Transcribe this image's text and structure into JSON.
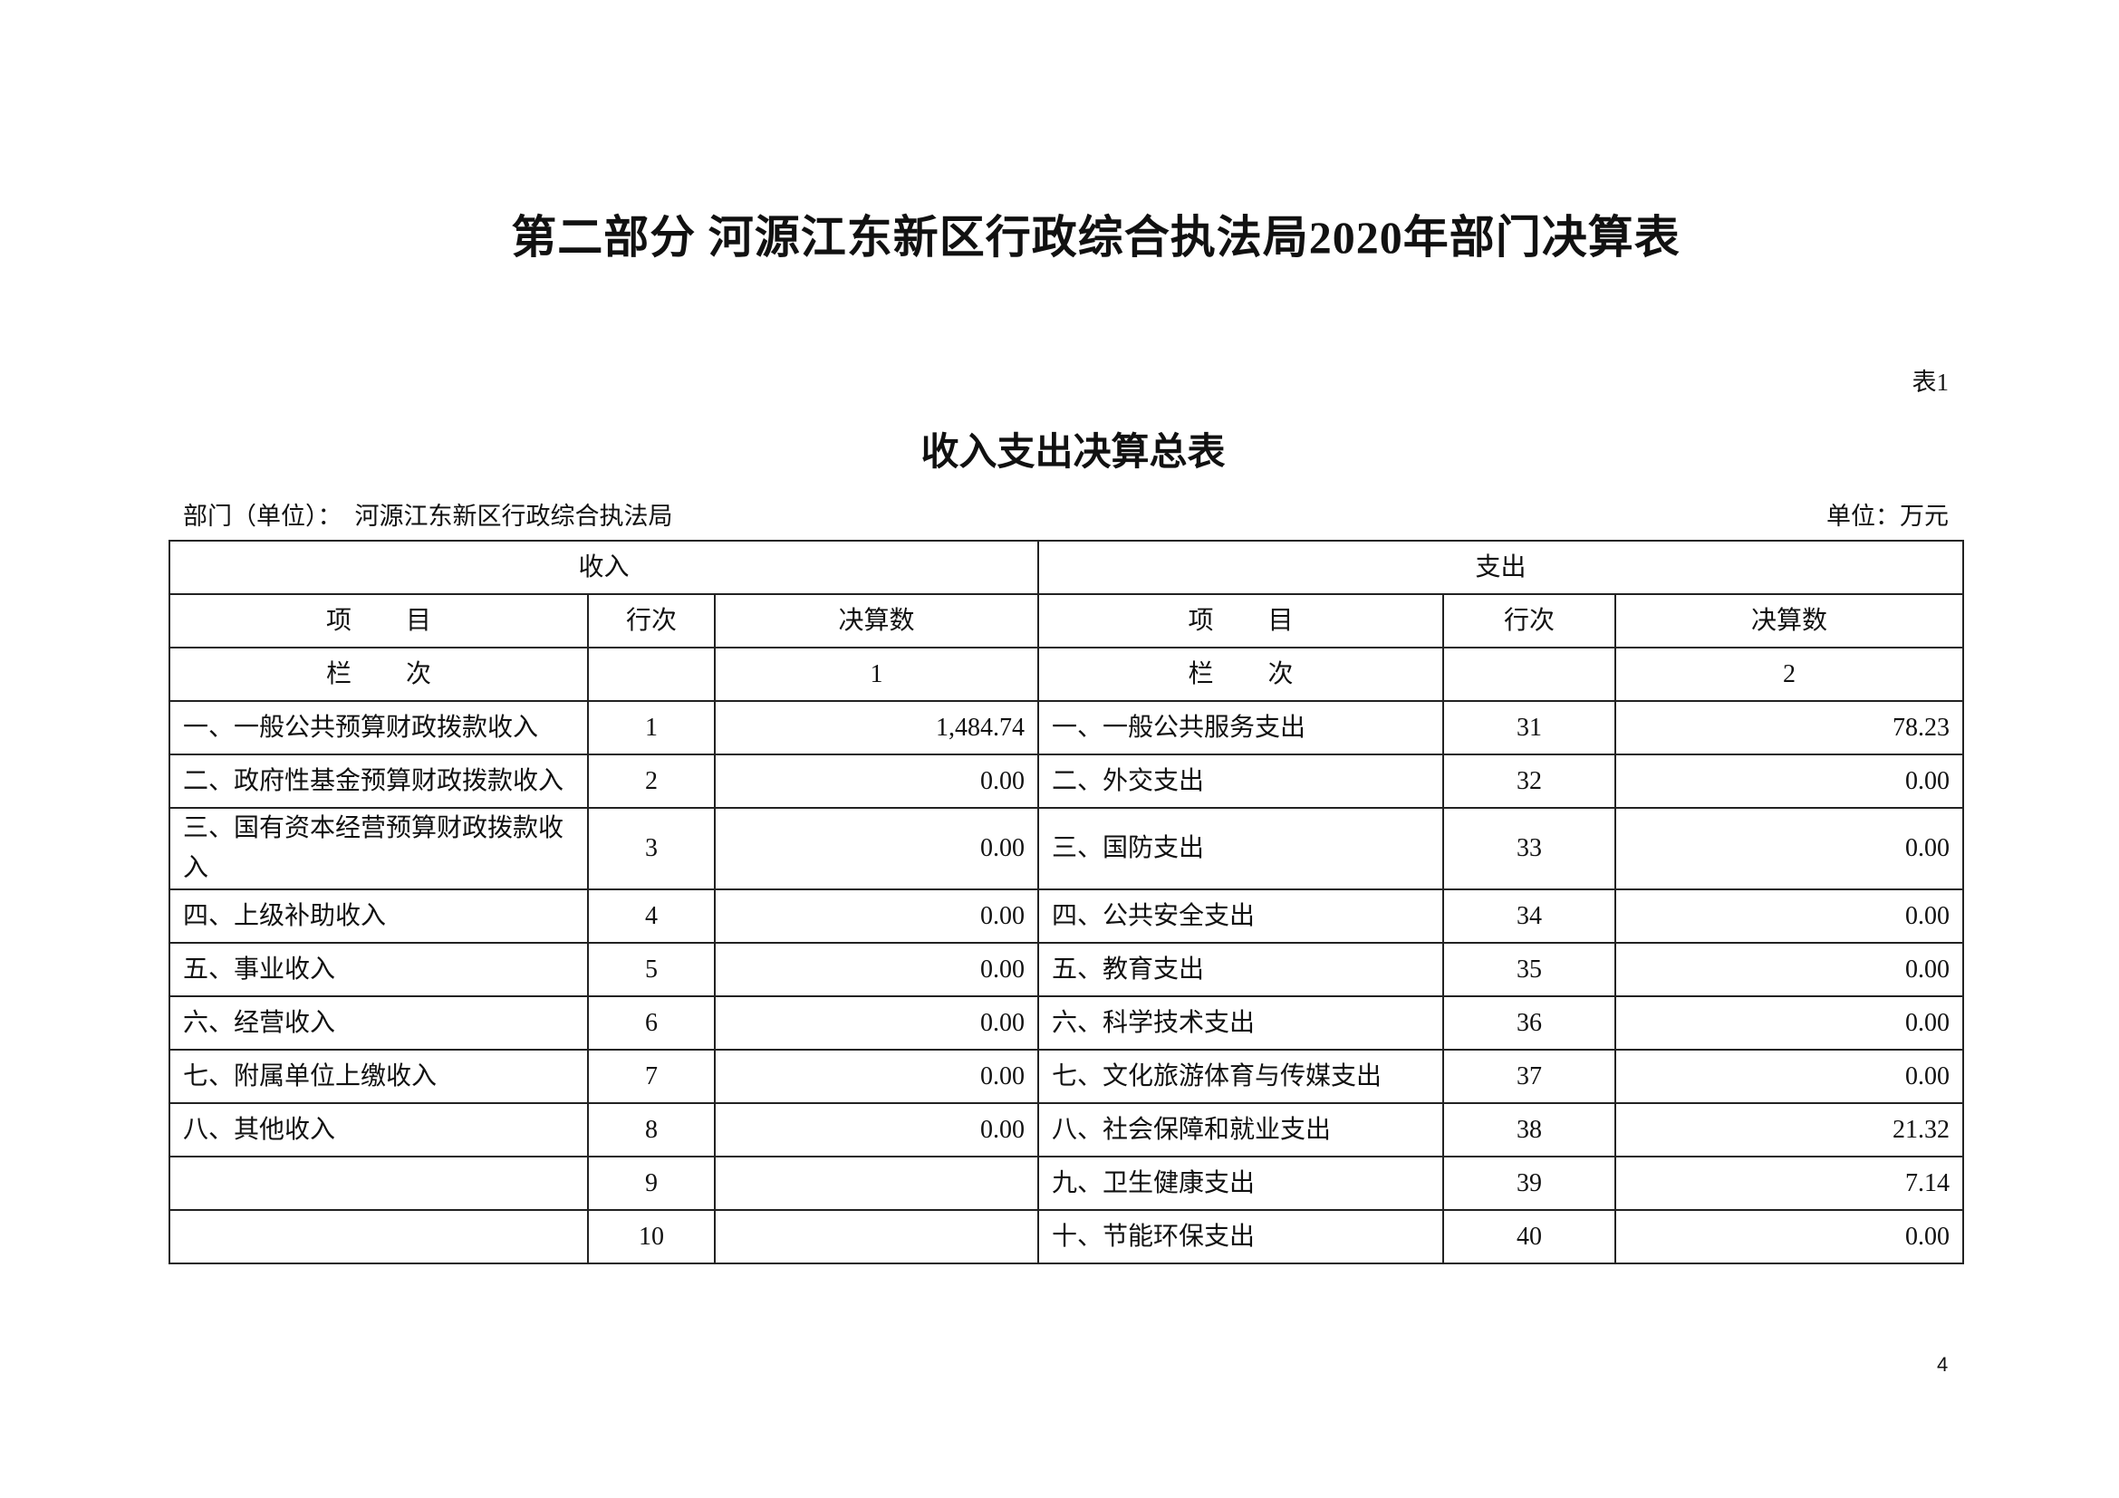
{
  "title": "第二部分  河源江东新区行政综合执法局2020年部门决算表",
  "table_no": "表1",
  "subtitle": "收入支出决算总表",
  "dept_label": "部门（单位）：",
  "dept_name": "河源江东新区行政综合执法局",
  "unit": "单位：万元",
  "headers": {
    "income": "收入",
    "expense": "支出",
    "item": "项目",
    "row_no": "行次",
    "amount": "决算数",
    "column": "栏次",
    "income_col": "1",
    "expense_col": "2"
  },
  "rows": [
    {
      "in_item": "一、一般公共预算财政拨款收入",
      "in_no": "1",
      "in_amt": "1,484.74",
      "ex_item": "一、一般公共服务支出",
      "ex_no": "31",
      "ex_amt": "78.23"
    },
    {
      "in_item": "二、政府性基金预算财政拨款收入",
      "in_no": "2",
      "in_amt": "0.00",
      "ex_item": "二、外交支出",
      "ex_no": "32",
      "ex_amt": "0.00"
    },
    {
      "in_item": "三、国有资本经营预算财政拨款收入",
      "in_no": "3",
      "in_amt": "0.00",
      "ex_item": "三、国防支出",
      "ex_no": "33",
      "ex_amt": "0.00"
    },
    {
      "in_item": "四、上级补助收入",
      "in_no": "4",
      "in_amt": "0.00",
      "ex_item": "四、公共安全支出",
      "ex_no": "34",
      "ex_amt": "0.00"
    },
    {
      "in_item": "五、事业收入",
      "in_no": "5",
      "in_amt": "0.00",
      "ex_item": "五、教育支出",
      "ex_no": "35",
      "ex_amt": "0.00"
    },
    {
      "in_item": "六、经营收入",
      "in_no": "6",
      "in_amt": "0.00",
      "ex_item": "六、科学技术支出",
      "ex_no": "36",
      "ex_amt": "0.00"
    },
    {
      "in_item": "七、附属单位上缴收入",
      "in_no": "7",
      "in_amt": "0.00",
      "ex_item": "七、文化旅游体育与传媒支出",
      "ex_no": "37",
      "ex_amt": "0.00"
    },
    {
      "in_item": "八、其他收入",
      "in_no": "8",
      "in_amt": "0.00",
      "ex_item": "八、社会保障和就业支出",
      "ex_no": "38",
      "ex_amt": "21.32"
    },
    {
      "in_item": "",
      "in_no": "9",
      "in_amt": "",
      "ex_item": "九、卫生健康支出",
      "ex_no": "39",
      "ex_amt": "7.14"
    },
    {
      "in_item": "",
      "in_no": "10",
      "in_amt": "",
      "ex_item": "十、节能环保支出",
      "ex_no": "40",
      "ex_amt": "0.00"
    }
  ],
  "page_number": "4"
}
